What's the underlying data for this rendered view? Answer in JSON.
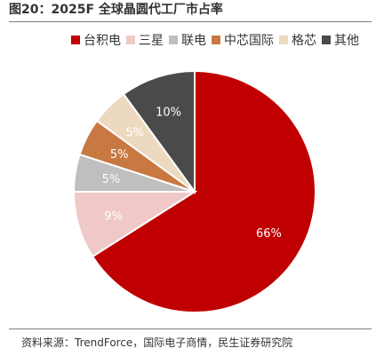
{
  "header": {
    "title": "图20：2025F 全球晶圆代工厂市占率"
  },
  "footer": {
    "source": "资料来源：TrendForce，国际电子商情，民生证券研究院"
  },
  "chart_data": {
    "type": "pie",
    "title": "",
    "legend_position": "top",
    "slices": [
      {
        "label": "台积电",
        "value": 66,
        "display": "66%",
        "color": "#c00000"
      },
      {
        "label": "三星",
        "value": 9,
        "display": "9%",
        "color": "#f0c8c8"
      },
      {
        "label": "联电",
        "value": 5,
        "display": "5%",
        "color": "#bfbfbf"
      },
      {
        "label": "中芯国际",
        "value": 5,
        "display": "5%",
        "color": "#c87941"
      },
      {
        "label": "格芯",
        "value": 5,
        "display": "5%",
        "color": "#ecd9bf"
      },
      {
        "label": "其他",
        "value": 10,
        "display": "10%",
        "color": "#4a4a4a"
      }
    ],
    "label_colors": {
      "light": "#ffffff",
      "dark": "#ffffff"
    }
  }
}
